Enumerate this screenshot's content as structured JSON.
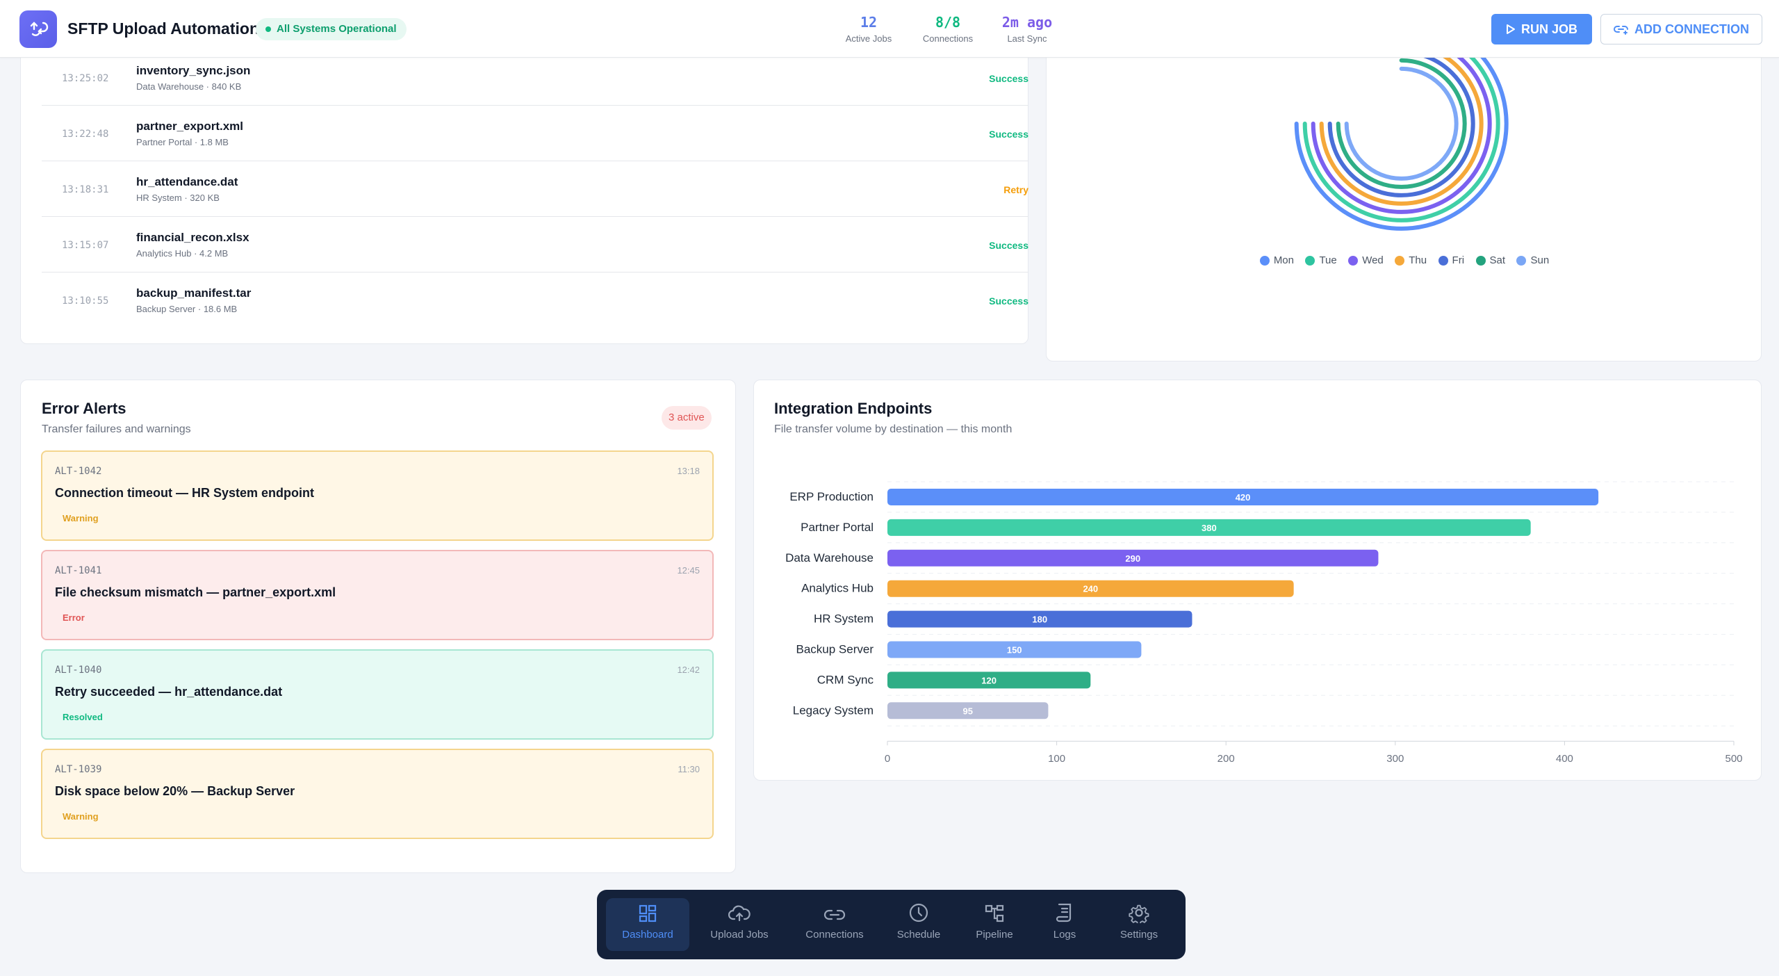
{
  "header": {
    "title": "SFTP Upload Automation",
    "status": "All Systems Operational",
    "stats": [
      {
        "value": "12",
        "label": "Active Jobs",
        "color": "#5b7de8"
      },
      {
        "value": "8/8",
        "label": "Connections",
        "color": "#10b981"
      },
      {
        "value": "2m ago",
        "label": "Last Sync",
        "color": "#7c5ce8"
      }
    ],
    "run_label": "RUN JOB",
    "add_label": "ADD CONNECTION"
  },
  "transfers": [
    {
      "time": "13:25:02",
      "file": "inventory_sync.json",
      "meta": "Data Warehouse · 840 KB",
      "status": "Success",
      "status_color": "#10b981"
    },
    {
      "time": "13:22:48",
      "file": "partner_export.xml",
      "meta": "Partner Portal · 1.8 MB",
      "status": "Success",
      "status_color": "#10b981"
    },
    {
      "time": "13:18:31",
      "file": "hr_attendance.dat",
      "meta": "HR System · 320 KB",
      "status": "Retry",
      "status_color": "#f59e0b"
    },
    {
      "time": "13:15:07",
      "file": "financial_recon.xlsx",
      "meta": "Analytics Hub · 4.2 MB",
      "status": "Success",
      "status_color": "#10b981"
    },
    {
      "time": "13:10:55",
      "file": "backup_manifest.tar",
      "meta": "Backup Server · 18.6 MB",
      "status": "Success",
      "status_color": "#10b981"
    }
  ],
  "radial": {
    "legend": [
      {
        "label": "Mon",
        "color": "#5b8ff9"
      },
      {
        "label": "Tue",
        "color": "#2ec4a0"
      },
      {
        "label": "Wed",
        "color": "#7b61f0"
      },
      {
        "label": "Thu",
        "color": "#f5a83a"
      },
      {
        "label": "Fri",
        "color": "#4a6fd8"
      },
      {
        "label": "Sat",
        "color": "#23a37e"
      },
      {
        "label": "Sun",
        "color": "#7aa6f5"
      }
    ]
  },
  "alerts": {
    "title": "Error Alerts",
    "subtitle": "Transfer failures and warnings",
    "badge": "3 active",
    "items": [
      {
        "id": "ALT-1042",
        "time": "13:18",
        "message": "Connection timeout — HR System endpoint",
        "severity": "Warning",
        "bg": "#fff7e6",
        "border": "#f4d58d",
        "sev_color": "#e0a020"
      },
      {
        "id": "ALT-1041",
        "time": "12:45",
        "message": "File checksum mismatch — partner_export.xml",
        "severity": "Error",
        "bg": "#fdecec",
        "border": "#f3b8b8",
        "sev_color": "#e05555"
      },
      {
        "id": "ALT-1040",
        "time": "12:42",
        "message": "Retry succeeded — hr_attendance.dat",
        "severity": "Resolved",
        "bg": "#e6faf4",
        "border": "#a8e6d2",
        "sev_color": "#10b981"
      },
      {
        "id": "ALT-1039",
        "time": "11:30",
        "message": "Disk space below 20% — Backup Server",
        "severity": "Warning",
        "bg": "#fff7e6",
        "border": "#f4d58d",
        "sev_color": "#e0a020"
      }
    ]
  },
  "endpoints": {
    "title": "Integration Endpoints",
    "subtitle": "File transfer volume by destination — this month"
  },
  "chart_data": {
    "type": "bar",
    "orientation": "horizontal",
    "categories": [
      "ERP Production",
      "Partner Portal",
      "Data Warehouse",
      "Analytics Hub",
      "HR System",
      "Backup Server",
      "CRM Sync",
      "Legacy System"
    ],
    "values": [
      420,
      380,
      290,
      240,
      180,
      150,
      120,
      95
    ],
    "colors": [
      "#5b8ff9",
      "#3fcfa7",
      "#7b61f0",
      "#f5a83a",
      "#4a6fd8",
      "#7ea8f7",
      "#2fae86",
      "#b6bcd6"
    ],
    "xlim": [
      0,
      500
    ],
    "xticks": [
      0,
      100,
      200,
      300,
      400,
      500
    ],
    "grid": true
  },
  "nav": [
    {
      "label": "Dashboard",
      "icon": "dashboard-icon",
      "active": true
    },
    {
      "label": "Upload Jobs",
      "icon": "cloud-upload-icon",
      "active": false
    },
    {
      "label": "Connections",
      "icon": "link-icon",
      "active": false
    },
    {
      "label": "Schedule",
      "icon": "clock-icon",
      "active": false
    },
    {
      "label": "Pipeline",
      "icon": "pipeline-icon",
      "active": false
    },
    {
      "label": "Logs",
      "icon": "logs-icon",
      "active": false
    },
    {
      "label": "Settings",
      "icon": "gear-icon",
      "active": false
    }
  ]
}
